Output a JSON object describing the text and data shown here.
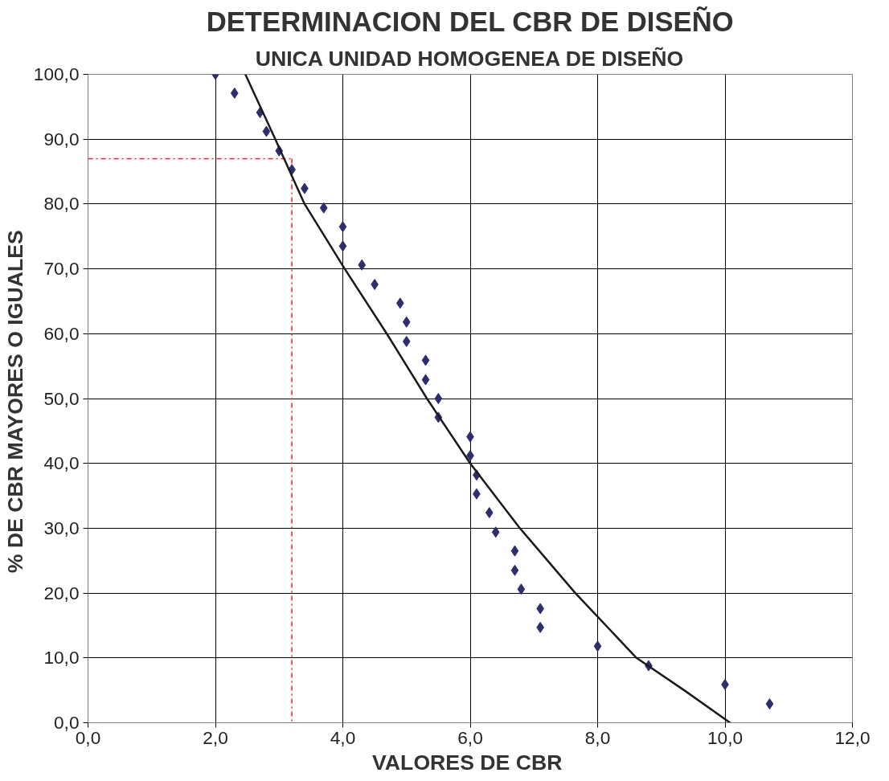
{
  "chart_data": {
    "type": "scatter",
    "title": "DETERMINACION DEL CBR DE DISEÑO",
    "subtitle": "UNICA UNIDAD HOMOGENEA DE DISEÑO",
    "xlabel": "VALORES DE  CBR",
    "ylabel": "% DE CBR  MAYORES O IGUALES",
    "xlim": [
      0,
      12
    ],
    "ylim": [
      0,
      100
    ],
    "xticks": [
      {
        "value": 0,
        "label": "0,0"
      },
      {
        "value": 2,
        "label": "2,0"
      },
      {
        "value": 4,
        "label": "4,0"
      },
      {
        "value": 6,
        "label": "6,0"
      },
      {
        "value": 8,
        "label": "8,0"
      },
      {
        "value": 10,
        "label": "10,0"
      },
      {
        "value": 12,
        "label": "12,0"
      }
    ],
    "yticks": [
      {
        "value": 0,
        "label": "0,0"
      },
      {
        "value": 10,
        "label": "10,0"
      },
      {
        "value": 20,
        "label": "20,0"
      },
      {
        "value": 30,
        "label": "30,0"
      },
      {
        "value": 40,
        "label": "40,0"
      },
      {
        "value": 50,
        "label": "50,0"
      },
      {
        "value": 60,
        "label": "60,0"
      },
      {
        "value": 70,
        "label": "70,0"
      },
      {
        "value": 80,
        "label": "80,0"
      },
      {
        "value": 90,
        "label": "90,0"
      },
      {
        "value": 100,
        "label": "100,0"
      }
    ],
    "grid": true,
    "series": [
      {
        "marker": "diamond",
        "color": "#2e2e6e",
        "x": [
          2.0,
          2.3,
          2.7,
          2.8,
          3.0,
          3.2,
          3.4,
          3.7,
          4.0,
          4.0,
          4.3,
          4.5,
          4.9,
          5.0,
          5.0,
          5.3,
          5.3,
          5.5,
          5.5,
          6.0,
          6.0,
          6.1,
          6.1,
          6.3,
          6.4,
          6.7,
          6.7,
          6.8,
          7.1,
          7.1,
          8.0,
          8.8,
          10.0,
          10.7
        ],
        "values": [
          100.0,
          97.1,
          94.1,
          91.2,
          88.2,
          85.3,
          82.4,
          79.4,
          76.5,
          73.5,
          70.6,
          67.6,
          64.7,
          61.8,
          58.8,
          55.9,
          52.9,
          50.0,
          47.1,
          44.1,
          41.2,
          38.2,
          35.3,
          32.4,
          29.4,
          26.5,
          23.5,
          20.6,
          17.6,
          14.7,
          11.8,
          8.8,
          5.9,
          2.9
        ]
      },
      {
        "type": "line",
        "color": "#1a1a1a",
        "x": [
          2.47,
          2.94,
          3.4,
          4.03,
          4.69,
          5.32,
          6.0,
          6.78,
          7.65,
          8.61,
          9.36,
          10.08
        ],
        "values": [
          100,
          90,
          80,
          70,
          60,
          50,
          40,
          30,
          20,
          10,
          5,
          0
        ]
      }
    ],
    "ref_lines": [
      {
        "axis": "y",
        "value": 87,
        "color": "#e8202a",
        "line_style": "dashdot"
      },
      {
        "axis": "x",
        "value": 3.2,
        "color": "#e8202a",
        "line_style": "dashdot"
      }
    ]
  }
}
